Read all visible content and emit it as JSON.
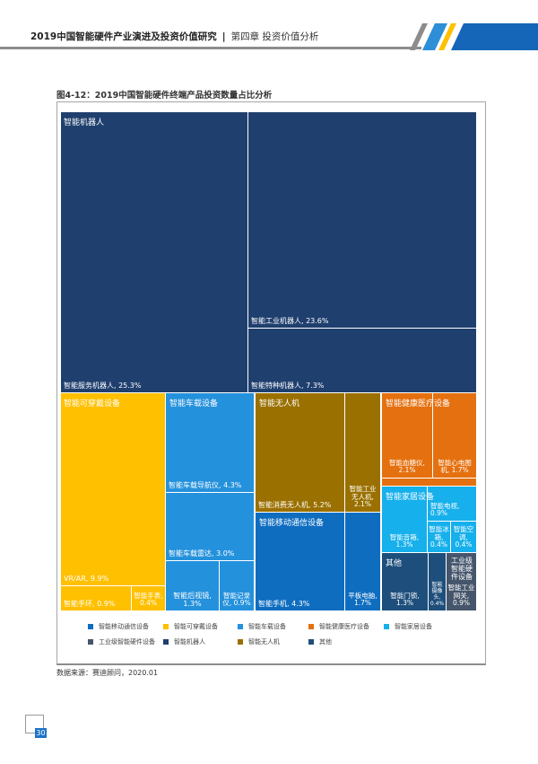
{
  "header": {
    "report_title": "2019中国智能硬件产业演进及投资价值研究",
    "separator": "|",
    "chapter": "第四章 投资价值分析"
  },
  "figure": {
    "title": "图4-12：2019中国智能硬件终端产品投资数量占比分析"
  },
  "chart_data": {
    "type": "treemap",
    "title": "图4-12：2019中国智能硬件终端产品投资数量占比分析",
    "groups": [
      {
        "name": "智能机器人",
        "color": "#1f3f6e",
        "items": [
          {
            "label": "智能服务机器人",
            "value": 25.3
          },
          {
            "label": "智能工业机器人",
            "value": 23.6
          },
          {
            "label": "智能特种机器人",
            "value": 7.3
          }
        ]
      },
      {
        "name": "智能可穿戴设备",
        "color": "#ffc000",
        "items": [
          {
            "label": "VR/AR",
            "value": 9.9
          },
          {
            "label": "智能手环",
            "value": 0.9
          },
          {
            "label": "智能手表",
            "value": 0.4
          }
        ]
      },
      {
        "name": "智能车载设备",
        "color": "#2491dc",
        "items": [
          {
            "label": "智能车载导航仪",
            "value": 4.3
          },
          {
            "label": "智能车载雷达",
            "value": 3.0
          },
          {
            "label": "智能后视镜",
            "value": 1.3
          },
          {
            "label": "智能记录仪",
            "value": 0.9
          }
        ]
      },
      {
        "name": "智能无人机",
        "color": "#9a7000",
        "items": [
          {
            "label": "智能消费无人机",
            "value": 5.2
          },
          {
            "label": "智能工业无人机",
            "value": 2.1
          }
        ]
      },
      {
        "name": "智能移动通信设备",
        "color": "#0f6dc0",
        "items": [
          {
            "label": "智能手机",
            "value": 4.3
          },
          {
            "label": "平板电脑",
            "value": 1.7
          }
        ]
      },
      {
        "name": "智能健康医疗设备",
        "color": "#e5700f",
        "items": [
          {
            "label": "智能血糖仪",
            "value": 2.1
          },
          {
            "label": "智能心电图机",
            "value": 1.7
          },
          {
            "label": "",
            "value": null
          }
        ]
      },
      {
        "name": "智能家居设备",
        "color": "#16b0ec",
        "items": [
          {
            "label": "智能音箱",
            "value": 1.3
          },
          {
            "label": "智能电视",
            "value": 0.9
          },
          {
            "label": "智能冰箱",
            "value": 0.4
          },
          {
            "label": "智能空调",
            "value": 0.4
          }
        ]
      },
      {
        "name": "其他",
        "color": "#1e4f7c",
        "items": [
          {
            "label": "智能门锁",
            "value": 1.3
          },
          {
            "label": "智能摄像头",
            "value": 0.4
          }
        ]
      },
      {
        "name": "工业级智能硬件设备",
        "color": "#45556b",
        "items": [
          {
            "label": "智能工业网关",
            "value": 0.9
          }
        ]
      }
    ],
    "display_labels": [
      "智能服务机器人, 25.3%",
      "智能工业机器人, 23.6%",
      "智能特种机器人, 7.3%",
      "VR/AR, 9.9%",
      "智能手环, 0.9%",
      "智能手表, 0.4%",
      "智能车载导航仪, 4.3%",
      "智能车载雷达, 3.0%",
      "智能后视镜, 1.3%",
      "智能记录仪, 0.9%",
      "智能消费无人机, 5.2%",
      "智能工业无人机, 2.1%",
      "智能手机, 4.3%",
      "平板电脑, 1.7%",
      "智能血糖仪, 2.1%",
      "智能心电图机, 1.7%",
      "",
      "智能音箱, 1.3%",
      "智能电视, 0.9%",
      "智能冰箱, 0.4%",
      "智能空调, 0.4%",
      "智能门锁, 1.3%",
      "智能摄像头, 0.4%",
      "智能工业网关, 0.9%"
    ],
    "legend": [
      "智能移动通信设备",
      "智能可穿戴设备",
      "智能车载设备",
      "智能健康医疗设备",
      "智能家居设备",
      "工业级智能硬件设备",
      "智能机器人",
      "智能无人机",
      "其他"
    ],
    "legend_colors": [
      "#0f6dc0",
      "#ffc000",
      "#2491dc",
      "#e5700f",
      "#16b0ec",
      "#45556b",
      "#1f3f6e",
      "#9a7000",
      "#1e4f7c"
    ]
  },
  "source": "数据来源：赛迪顾问，2020.01",
  "page_number": "30"
}
